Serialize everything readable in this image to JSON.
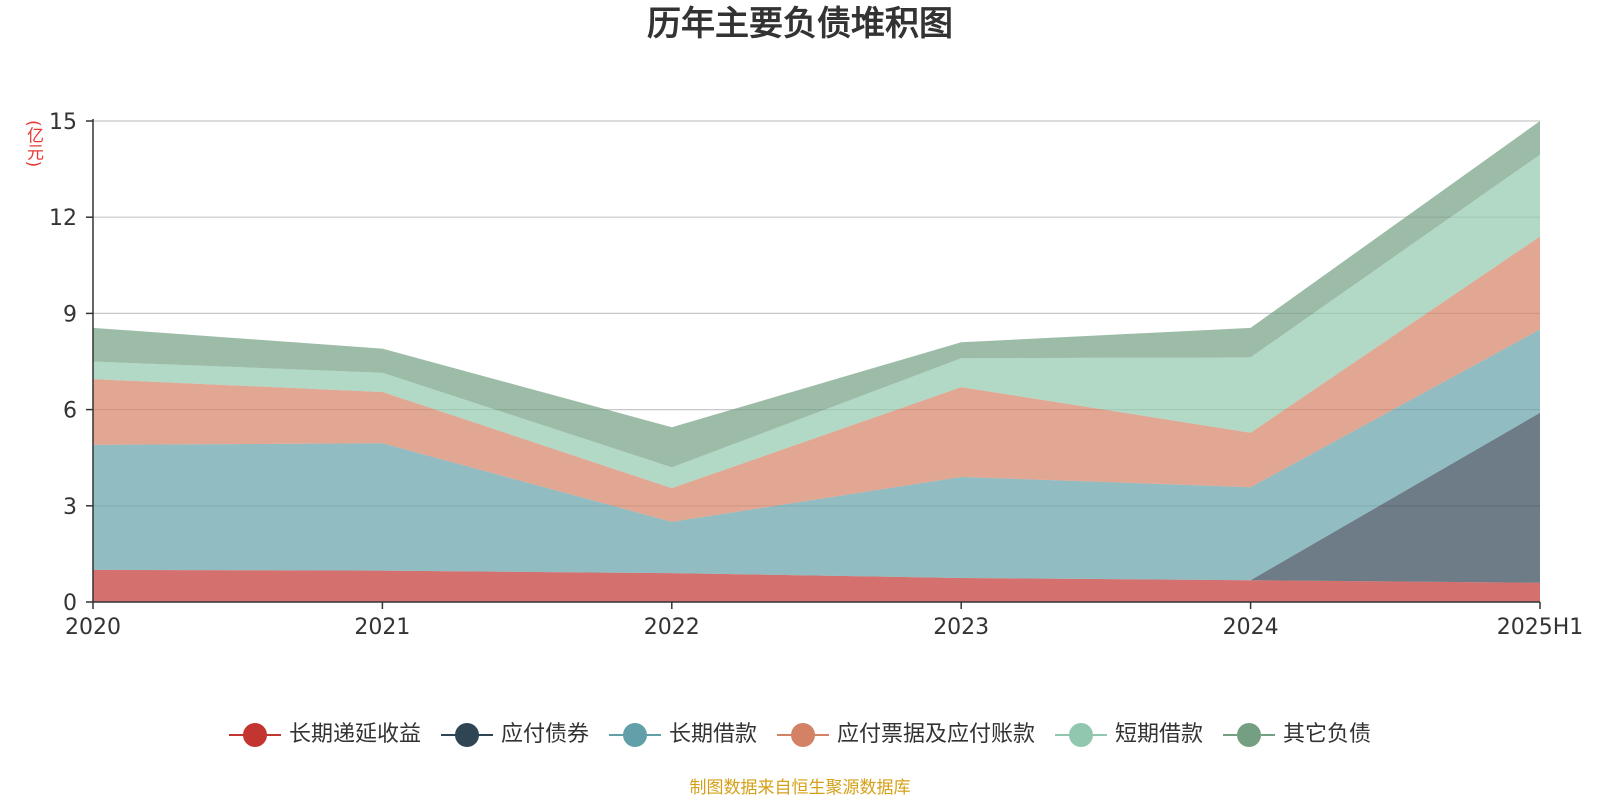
{
  "chart_data": {
    "type": "area",
    "stacked": true,
    "title": "历年主要负债堆积图",
    "unit": "(亿元)",
    "categories": [
      "2020",
      "2021",
      "2022",
      "2023",
      "2024",
      "2025H1"
    ],
    "ylim": [
      0,
      15
    ],
    "yticks": [
      0,
      3,
      6,
      9,
      12,
      15
    ],
    "grid": true,
    "legend_position": "bottom",
    "series": [
      {
        "name": "长期递延收益",
        "color": "#c23531",
        "values": [
          1.0,
          0.98,
          0.9,
          0.75,
          0.68,
          0.6
        ]
      },
      {
        "name": "应付债券",
        "color": "#2f4554",
        "values": [
          0,
          0,
          0,
          0,
          0,
          5.3
        ]
      },
      {
        "name": "长期借款",
        "color": "#61a0a8",
        "values": [
          3.9,
          3.97,
          1.6,
          3.15,
          2.9,
          2.6
        ]
      },
      {
        "name": "应付票据及应付账款",
        "color": "#d48265",
        "values": [
          2.05,
          1.6,
          1.05,
          2.8,
          1.7,
          2.9
        ]
      },
      {
        "name": "短期借款",
        "color": "#91c7ae",
        "values": [
          0.55,
          0.6,
          0.65,
          0.9,
          2.35,
          2.55
        ]
      },
      {
        "name": "其它负债",
        "color": "#749f83",
        "values": [
          1.05,
          0.75,
          1.25,
          0.5,
          0.92,
          1.05
        ]
      }
    ]
  },
  "source_note": "制图数据来自恒生聚源数据库"
}
